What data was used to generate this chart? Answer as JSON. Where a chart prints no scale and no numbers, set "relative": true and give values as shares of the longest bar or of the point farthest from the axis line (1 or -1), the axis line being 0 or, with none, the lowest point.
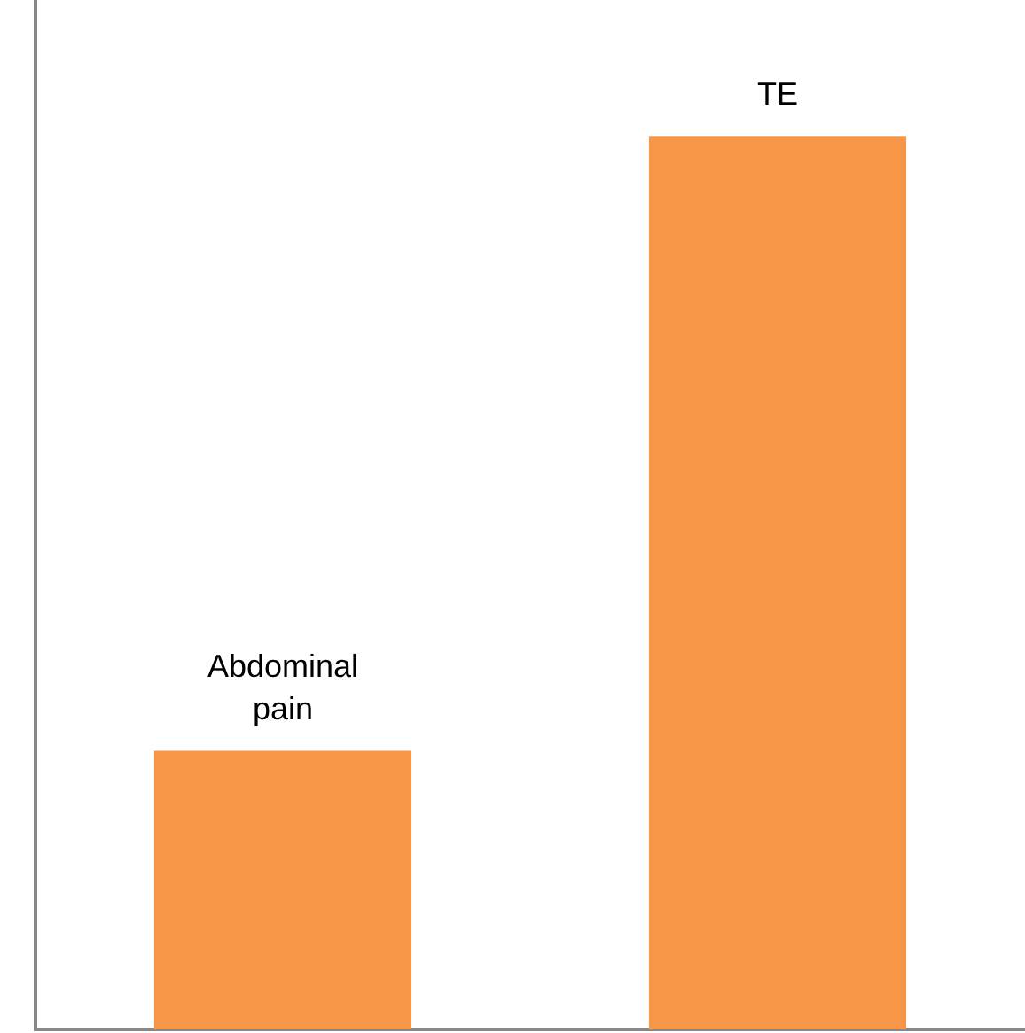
{
  "chart_data": {
    "type": "bar",
    "categories": [
      "Abdominal pain",
      "TE"
    ],
    "values": [
      0.312,
      1
    ],
    "color": "#f79646",
    "relative": true,
    "grid": false,
    "legend": false
  }
}
